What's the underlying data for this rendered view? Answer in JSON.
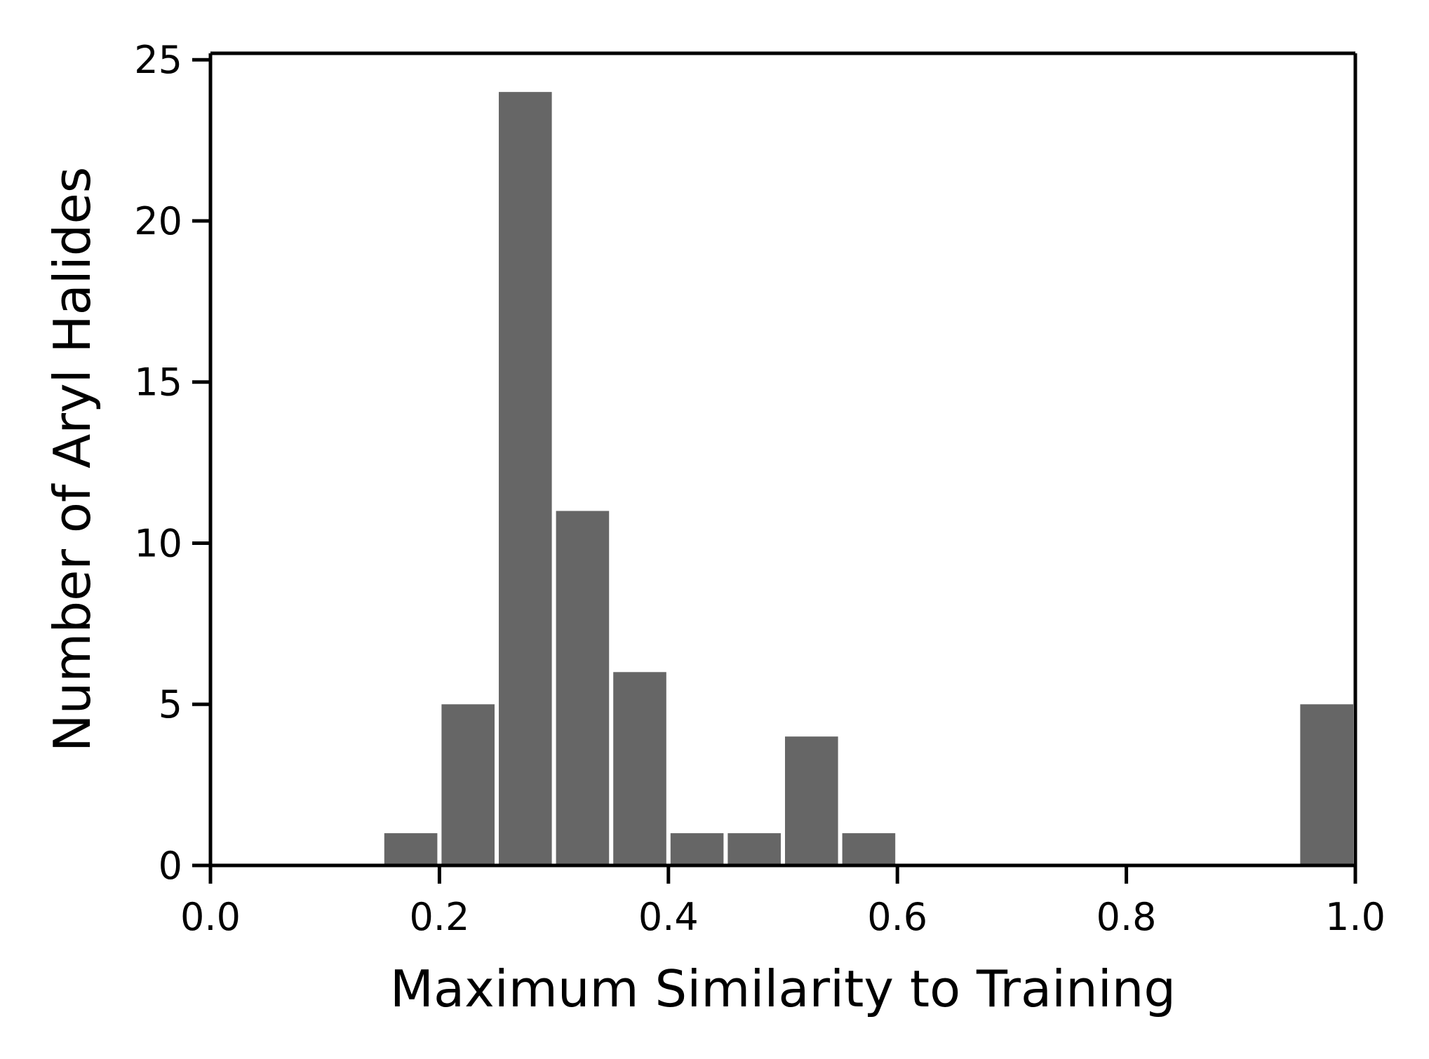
{
  "chart_data": {
    "type": "bar",
    "title": "",
    "xlabel": "Maximum Similarity to Training",
    "ylabel": "Number of Aryl Halides",
    "xlim": [
      0.0,
      1.0
    ],
    "ylim": [
      0,
      25.2
    ],
    "xticks": [
      "0.0",
      "0.2",
      "0.4",
      "0.6",
      "0.8",
      "1.0"
    ],
    "yticks": [
      "0",
      "5",
      "10",
      "15",
      "20",
      "25"
    ],
    "xtick_values": [
      0.0,
      0.2,
      0.4,
      0.6,
      0.8,
      1.0
    ],
    "ytick_values": [
      0,
      5,
      10,
      15,
      20,
      25
    ],
    "bin_width": 0.05,
    "bins": [
      {
        "start": 0.15,
        "end": 0.2,
        "count": 1
      },
      {
        "start": 0.2,
        "end": 0.25,
        "count": 5
      },
      {
        "start": 0.25,
        "end": 0.3,
        "count": 24
      },
      {
        "start": 0.3,
        "end": 0.35,
        "count": 11
      },
      {
        "start": 0.35,
        "end": 0.4,
        "count": 6
      },
      {
        "start": 0.4,
        "end": 0.45,
        "count": 1
      },
      {
        "start": 0.45,
        "end": 0.5,
        "count": 1
      },
      {
        "start": 0.5,
        "end": 0.55,
        "count": 4
      },
      {
        "start": 0.55,
        "end": 0.6,
        "count": 1
      },
      {
        "start": 0.95,
        "end": 1.0,
        "count": 5
      }
    ],
    "bar_color": "#666666",
    "grid": false,
    "legend": "none"
  }
}
